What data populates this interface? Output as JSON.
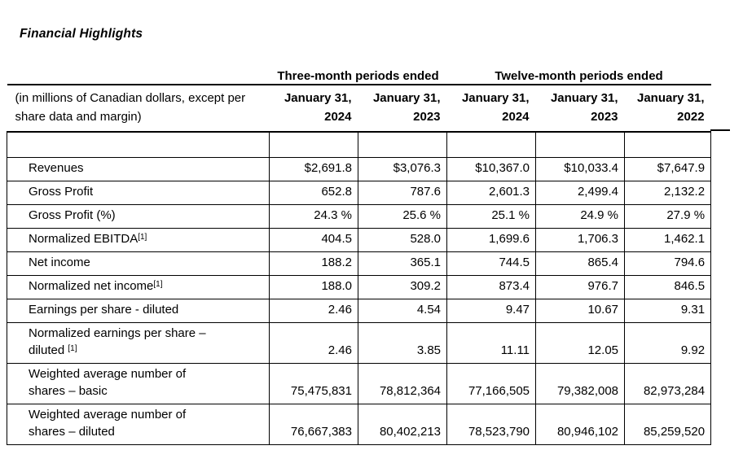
{
  "title": "Financial Highlights",
  "colors": {
    "text": "#000000",
    "background": "#ffffff",
    "border": "#000000"
  },
  "table": {
    "group_headers": [
      {
        "label": "Three-month periods ended"
      },
      {
        "label": "Twelve-month periods ended"
      }
    ],
    "unit_note": "(in millions of Canadian dollars, except per share data and margin)",
    "columns": [
      {
        "month": "January 31,",
        "year": "2024"
      },
      {
        "month": "January 31,",
        "year": "2023"
      },
      {
        "month": "January 31,",
        "year": "2024"
      },
      {
        "month": "January 31,",
        "year": "2023"
      },
      {
        "month": "January 31,",
        "year": "2022"
      }
    ],
    "rows": [
      {
        "label": "Revenues",
        "sup1": "",
        "label2": "",
        "sup2": "",
        "values": [
          "$2,691.8",
          "$3,076.3",
          "$10,367.0",
          "$10,033.4",
          "$7,647.9"
        ]
      },
      {
        "label": "Gross Profit",
        "sup1": "",
        "label2": "",
        "sup2": "",
        "values": [
          "652.8",
          "787.6",
          "2,601.3",
          "2,499.4",
          "2,132.2"
        ]
      },
      {
        "label": "Gross Profit (%)",
        "sup1": "",
        "label2": "",
        "sup2": "",
        "values": [
          "24.3 %",
          "25.6 %",
          "25.1 %",
          "24.9 %",
          "27.9 %"
        ]
      },
      {
        "label": "Normalized EBITDA",
        "sup1": "[1]",
        "label2": "",
        "sup2": "",
        "values": [
          "404.5",
          "528.0",
          "1,699.6",
          "1,706.3",
          "1,462.1"
        ]
      },
      {
        "label": "Net income",
        "sup1": "",
        "label2": "",
        "sup2": "",
        "values": [
          "188.2",
          "365.1",
          "744.5",
          "865.4",
          "794.6"
        ]
      },
      {
        "label": "Normalized net income",
        "sup1": "[1]",
        "label2": "",
        "sup2": "",
        "values": [
          "188.0",
          "309.2",
          "873.4",
          "976.7",
          "846.5"
        ]
      },
      {
        "label": "Earnings per share - diluted",
        "sup1": "",
        "label2": "",
        "sup2": "",
        "values": [
          "2.46",
          "4.54",
          "9.47",
          "10.67",
          "9.31"
        ]
      },
      {
        "label": "Normalized earnings per share –",
        "sup1": "",
        "label2": "diluted ",
        "sup2": "[1]",
        "values": [
          "2.46",
          "3.85",
          "11.11",
          "12.05",
          "9.92"
        ]
      },
      {
        "label": "Weighted average number of",
        "sup1": "",
        "label2": "shares – basic",
        "sup2": "",
        "values": [
          "75,475,831",
          "78,812,364",
          "77,166,505",
          "79,382,008",
          "82,973,284"
        ]
      },
      {
        "label": "Weighted average number of",
        "sup1": "",
        "label2": "shares – diluted",
        "sup2": "",
        "values": [
          "76,667,383",
          "80,402,213",
          "78,523,790",
          "80,946,102",
          "85,259,520"
        ]
      }
    ]
  }
}
